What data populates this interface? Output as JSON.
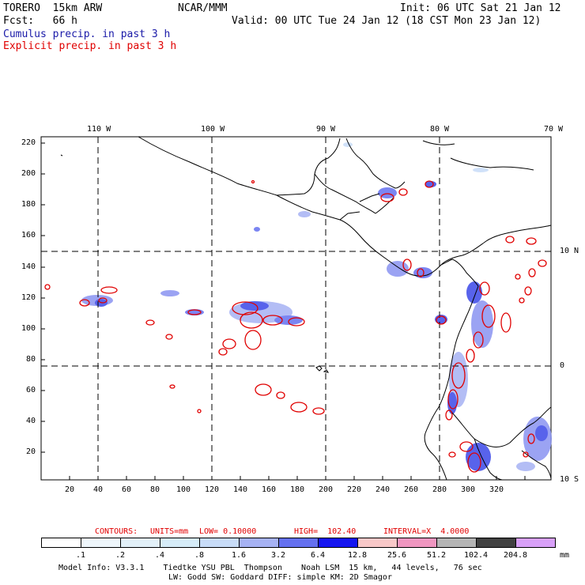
{
  "header": {
    "model": "TORERO  15km ARW",
    "org": "NCAR/MMM",
    "init": "Init: 06 UTC Sat 21 Jan 12",
    "fcst": "Fcst:   66 h",
    "valid": "Valid: 00 UTC Tue 24 Jan 12 (18 CST Mon 23 Jan 12)",
    "field1": "Cumulus precip. in past 3 h",
    "field2": "Explicit precip. in past 3 h"
  },
  "map": {
    "lon_labels": [
      "110 W",
      "100 W",
      "90 W",
      "80 W",
      "70 W"
    ],
    "lat_labels_right": [
      "10 N",
      "0",
      "10 S"
    ],
    "y_ticks": [
      "220",
      "200",
      "180",
      "160",
      "140",
      "120",
      "100",
      "80",
      "60",
      "40",
      "20"
    ],
    "x_ticks": [
      "20",
      "40",
      "60",
      "80",
      "100",
      "120",
      "140",
      "160",
      "180",
      "200",
      "220",
      "240",
      "260",
      "280",
      "300",
      "320"
    ]
  },
  "contours": {
    "label": "CONTOURS:",
    "units": "UNITS=mm",
    "low": "LOW= 0.10000",
    "high": "HIGH=  102.40",
    "interval": "INTERVAL=X  4.0000"
  },
  "colorbar": {
    "labels": [
      ".1",
      ".2",
      ".4",
      ".8",
      "1.6",
      "3.2",
      "6.4",
      "12.8",
      "25.6",
      "51.2",
      "102.4",
      "204.8"
    ],
    "unit": "mm",
    "colors": [
      "#ffffff",
      "#eef6fb",
      "#e2f0f8",
      "#d6ecf8",
      "#c8dcf8",
      "#a6b2f4",
      "#6470f0",
      "#1414f0",
      "#f8c8c8",
      "#f096c0",
      "#b4b4b4",
      "#404040",
      "#d8a0f8"
    ]
  },
  "footer": {
    "line1": "Model Info: V3.3.1    Tiedtke YSU PBL  Thompson    Noah LSM  15 km,   44 levels,   76 sec",
    "line2": "LW: Godd SW: Goddard DIFF: simple KM: 2D Smagor"
  }
}
